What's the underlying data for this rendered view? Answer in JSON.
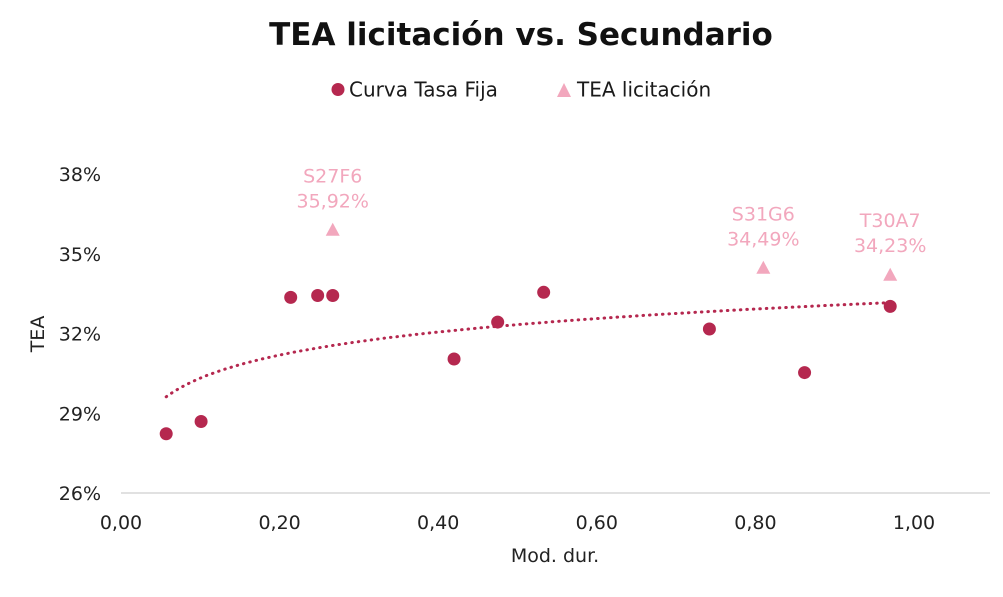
{
  "chart_data": {
    "type": "scatter",
    "title": "TEA licitación vs. Secundario",
    "xlabel": "Mod. dur.",
    "ylabel": "TEA",
    "xlim": [
      0,
      1.1
    ],
    "ylim": [
      0.26,
      0.38
    ],
    "x_ticks": [
      0,
      0.2,
      0.4,
      0.6,
      0.8,
      1.0
    ],
    "x_tick_labels": [
      "0,00",
      "0,20",
      "0,40",
      "0,60",
      "0,80",
      "1,00"
    ],
    "y_ticks": [
      0.26,
      0.29,
      0.32,
      0.35,
      0.38
    ],
    "y_tick_labels": [
      "26%",
      "29%",
      "32%",
      "35%",
      "38%"
    ],
    "grid": false,
    "legend_position": "top",
    "series": [
      {
        "name": "Curva Tasa Fija",
        "marker": "circle",
        "color": "#b5284f",
        "points": [
          {
            "x": 0.057,
            "y": 0.2823
          },
          {
            "x": 0.101,
            "y": 0.2869
          },
          {
            "x": 0.214,
            "y": 0.3336
          },
          {
            "x": 0.248,
            "y": 0.3343
          },
          {
            "x": 0.267,
            "y": 0.3343
          },
          {
            "x": 0.42,
            "y": 0.3104
          },
          {
            "x": 0.475,
            "y": 0.3243
          },
          {
            "x": 0.533,
            "y": 0.3355
          },
          {
            "x": 0.742,
            "y": 0.3217
          },
          {
            "x": 0.862,
            "y": 0.3053
          },
          {
            "x": 0.97,
            "y": 0.3302
          }
        ]
      },
      {
        "name": "TEA licitación",
        "marker": "triangle",
        "color": "#f2a7bd",
        "points": [
          {
            "x": 0.267,
            "y": 0.3592,
            "label": "S27F6",
            "value_label": "35,92%"
          },
          {
            "x": 0.81,
            "y": 0.3449,
            "label": "S31G6",
            "value_label": "34,49%"
          },
          {
            "x": 0.97,
            "y": 0.3423,
            "label": "T30A7",
            "value_label": "34,23%"
          }
        ]
      }
    ],
    "trendline": {
      "series": "Curva Tasa Fija",
      "type": "logarithmic",
      "style": "dotted",
      "color": "#b5284f",
      "a": 0.332,
      "b": 0.0125,
      "x_range": [
        0.057,
        0.97
      ]
    }
  }
}
